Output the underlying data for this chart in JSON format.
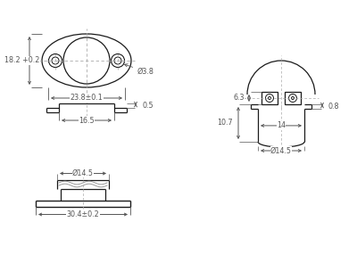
{
  "bg_color": "#ffffff",
  "line_color": "#1a1a1a",
  "dim_color": "#555555",
  "dash_color": "#aaaaaa",
  "figsize": [
    4.0,
    2.86
  ],
  "dpi": 100,
  "ann": {
    "width_238": "23.8±0.1",
    "height_182": "18.2 +0.2",
    "hole_38": "Ø3.8",
    "side_w": "16.5",
    "side_h": "0.5",
    "bot_dia": "Ø14.5",
    "bot_w": "30.4±0.2",
    "rt_h63": "6.3",
    "rt_w14": "14",
    "rt_h107": "10.7",
    "rt_t08": "0.8",
    "rt_dia": "Ø14.5"
  }
}
